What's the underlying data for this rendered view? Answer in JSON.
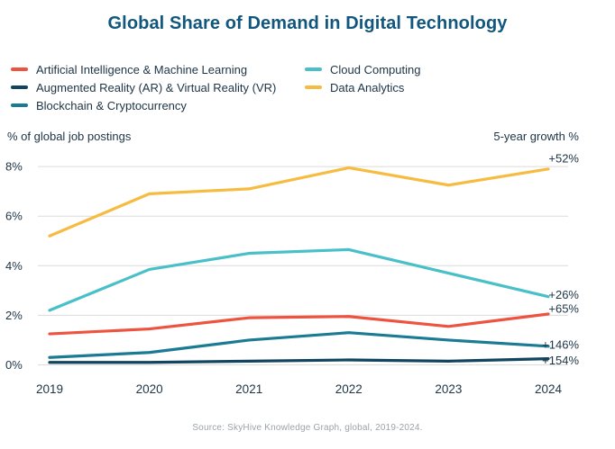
{
  "title": "Global Share of Demand in Digital Technology",
  "axis_left_label": "% of global job postings",
  "axis_right_label": "5-year growth %",
  "source": "Source: SkyHive Knowledge Graph, global, 2019-2024.",
  "colors": {
    "title": "#11567d",
    "text": "#1d3445",
    "gridline": "#dcdcdc",
    "source_text": "#9ba3ab",
    "background": "#ffffff"
  },
  "chart_data": {
    "type": "line",
    "title": "Global Share of Demand in Digital Technology",
    "xlabel": "",
    "ylabel": "% of global job postings",
    "x": [
      "2019",
      "2020",
      "2021",
      "2022",
      "2023",
      "2024"
    ],
    "ylim": [
      0,
      8
    ],
    "yticks": [
      "0%",
      "2%",
      "4%",
      "6%",
      "8%"
    ],
    "grid": "horizontal-only",
    "legend_position": "top-left, two columns",
    "right_axis_caption": "5-year growth %",
    "series": [
      {
        "name": "Artificial Intelligence & Machine Learning",
        "color": "#ee5340",
        "values": [
          1.25,
          1.45,
          1.9,
          1.95,
          1.55,
          2.05
        ],
        "growth_label": "+65%"
      },
      {
        "name": "Augmented Reality (AR) & Virtual Reality (VR)",
        "color": "#12455f",
        "values": [
          0.1,
          0.1,
          0.15,
          0.2,
          0.15,
          0.25
        ],
        "growth_label": "+154%"
      },
      {
        "name": "Blockchain & Cryptocurrency",
        "color": "#1b7a94",
        "values": [
          0.3,
          0.5,
          1.0,
          1.3,
          1.0,
          0.75
        ],
        "growth_label": "+146%"
      },
      {
        "name": "Cloud Computing",
        "color": "#49c0c8",
        "values": [
          2.2,
          3.85,
          4.5,
          4.65,
          3.7,
          2.75
        ],
        "growth_label": "+26%"
      },
      {
        "name": "Data Analytics",
        "color": "#f6bc41",
        "values": [
          5.2,
          6.9,
          7.1,
          7.95,
          7.25,
          7.9
        ],
        "growth_label": "+52%"
      }
    ]
  }
}
